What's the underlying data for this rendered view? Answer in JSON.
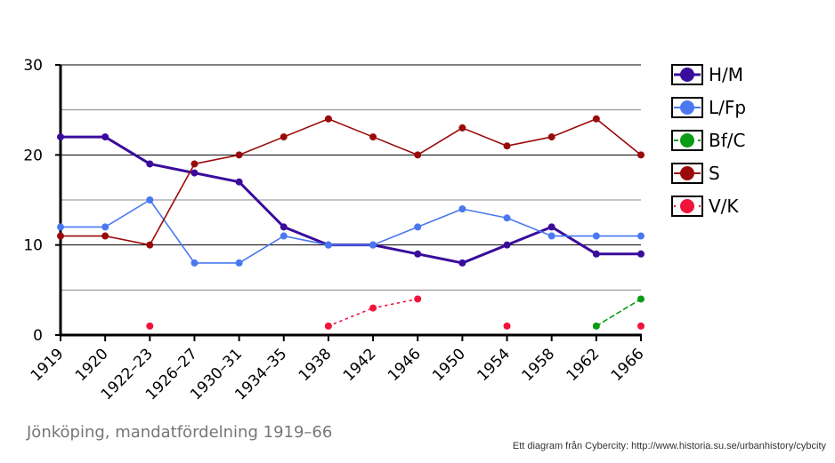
{
  "chart_data": {
    "type": "line",
    "categories": [
      "1919",
      "1920",
      "1922–23",
      "1926–27",
      "1930–31",
      "1934–35",
      "1938",
      "1942",
      "1946",
      "1950",
      "1954",
      "1958",
      "1962",
      "1966"
    ],
    "ylim": [
      0,
      30
    ],
    "yticks": [
      0,
      10,
      20,
      30
    ],
    "grid": true,
    "legend_position": "right",
    "series": [
      {
        "name": "H/M",
        "color": "#3a0c9c",
        "style": "solid",
        "thick": true,
        "values": [
          22,
          22,
          19,
          18,
          17,
          12,
          10,
          10,
          9,
          8,
          10,
          12,
          9,
          9
        ]
      },
      {
        "name": "L/Fp",
        "color": "#4a78f0",
        "style": "solid",
        "thick": false,
        "values": [
          12,
          12,
          15,
          8,
          8,
          11,
          10,
          10,
          12,
          14,
          13,
          11,
          11,
          11
        ]
      },
      {
        "name": "Bf/C",
        "color": "#0a9c14",
        "style": "dashed",
        "thick": false,
        "values": [
          null,
          null,
          null,
          null,
          null,
          null,
          null,
          null,
          null,
          null,
          null,
          null,
          1,
          4
        ]
      },
      {
        "name": "S",
        "color": "#9b0a0a",
        "style": "solid",
        "thick": false,
        "values": [
          11,
          11,
          10,
          19,
          20,
          22,
          24,
          22,
          20,
          23,
          21,
          22,
          24,
          20
        ]
      },
      {
        "name": "V/K",
        "color": "#f0143c",
        "style": "dotted",
        "thick": false,
        "values": [
          null,
          null,
          1,
          null,
          null,
          null,
          1,
          3,
          4,
          null,
          1,
          null,
          null,
          1
        ]
      }
    ]
  },
  "caption": "Jönköping, mandatfördelning 1919–66",
  "credit": "Ett diagram från Cybercity: http://www.historia.su.se/urbanhistory/cybcity"
}
